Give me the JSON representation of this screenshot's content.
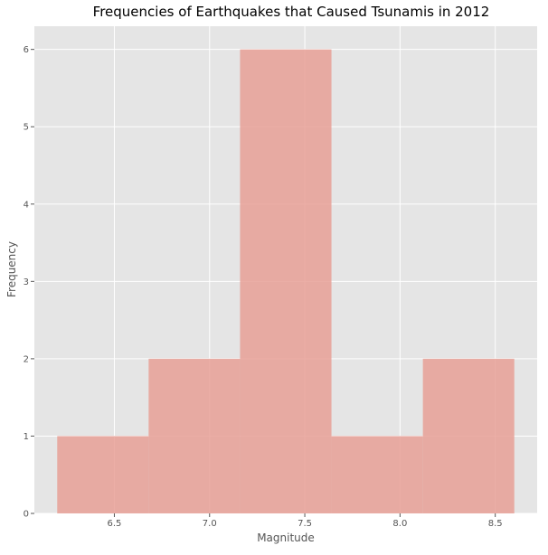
{
  "chart_data": {
    "type": "bar",
    "title": "Frequencies of Earthquakes that Caused Tsunamis in 2012",
    "xlabel": "Magnitude",
    "ylabel": "Frequency",
    "bins": [
      {
        "x0": 6.2,
        "x1": 6.68,
        "count": 1
      },
      {
        "x0": 6.68,
        "x1": 7.16,
        "count": 2
      },
      {
        "x0": 7.16,
        "x1": 7.64,
        "count": 6
      },
      {
        "x0": 7.64,
        "x1": 8.12,
        "count": 1
      },
      {
        "x0": 8.12,
        "x1": 8.6,
        "count": 2
      }
    ],
    "xlim": [
      6.08,
      8.72
    ],
    "ylim": [
      0,
      6.3
    ],
    "xticks": [
      "6.5",
      "7.0",
      "7.5",
      "8.0",
      "8.5"
    ],
    "yticks": [
      "0",
      "1",
      "2",
      "3",
      "4",
      "5",
      "6"
    ],
    "grid": true,
    "bar_color": "#E8A097",
    "background_color": "#E5E5E5",
    "grid_color": "#FFFFFF"
  }
}
